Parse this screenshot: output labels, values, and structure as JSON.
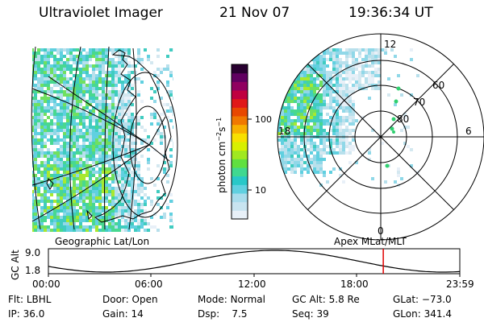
{
  "header": {
    "instrument": "Ultraviolet Imager",
    "date": "21 Nov 07",
    "time": "19:36:34 UT"
  },
  "left_panel": {
    "caption": "Geographic Lat/Lon"
  },
  "right_panel": {
    "caption": "Apex MLat/MLT",
    "mlt_labels": [
      "12",
      "18",
      "6",
      "0"
    ],
    "mlat_labels": [
      "60",
      "70",
      "80"
    ]
  },
  "colorbar": {
    "unit_label": "photon cm",
    "sup1": "−2",
    "mid": "s",
    "sup2": "−1",
    "ticks": [
      "100",
      "10"
    ],
    "colors": [
      "#e8f0f8",
      "#c8e4f0",
      "#a8dcec",
      "#60d0e0",
      "#28c8c8",
      "#40d890",
      "#60e040",
      "#a0e820",
      "#d8f000",
      "#f8e000",
      "#f8b000",
      "#f07800",
      "#e84800",
      "#e01818",
      "#c00040",
      "#900060",
      "#600060",
      "#280030"
    ]
  },
  "orbit": {
    "ylabel": "GC Alt",
    "y_ticks": [
      "9.0",
      "1.8"
    ],
    "x_ticks": [
      "00:00",
      "06:00",
      "12:00",
      "18:00",
      "23:59"
    ],
    "current_time_frac": 0.814
  },
  "info": {
    "row1": [
      {
        "key": "Flt:",
        "val": "LBHL"
      },
      {
        "key": "Door:",
        "val": "Open"
      },
      {
        "key": "Mode:",
        "val": "Normal"
      },
      {
        "key": "GC Alt:",
        "val": "5.8 Re"
      },
      {
        "key": "GLat:",
        "val": "−73.0"
      }
    ],
    "row2": [
      {
        "key": "IP:",
        "val": "36.0"
      },
      {
        "key": "Gain:",
        "val": "14"
      },
      {
        "key": "Dsp:",
        "val": "7.5"
      },
      {
        "key": "Seq:",
        "val": "39"
      },
      {
        "key": "GLon:",
        "val": "341.4"
      }
    ]
  }
}
